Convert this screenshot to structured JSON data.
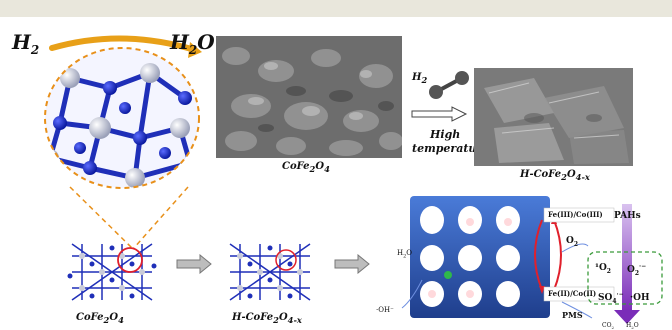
{
  "header": {
    "bar_color": "#e9e7dc"
  },
  "top_left": {
    "h2": "H",
    "h2_sub": "2",
    "h2o_h": "H",
    "h2o_sub": "2",
    "h2o_o": "O"
  },
  "sem_left": {
    "label_main": "CoFe",
    "label_sub1": "2",
    "label_o": "O",
    "label_sub2": "4"
  },
  "arrow_block": {
    "h2": "H",
    "h2_sub": "2",
    "line1": "High",
    "line2": "temperature"
  },
  "sem_right": {
    "label_main": "H-CoFe",
    "label_sub1": "2",
    "label_o": "O",
    "label_sub2": "4-x"
  },
  "bottom_left": {
    "label_main": "CoFe",
    "label_sub1": "2",
    "label_o": "O",
    "label_sub2": "4"
  },
  "bottom_mid": {
    "label_main": "H-CoFe",
    "label_sub1": "2",
    "label_o": "O",
    "label_sub2": "4-x"
  },
  "mechanism": {
    "fe3": "Fe(III)/Co(III)",
    "fe2": "Fe(II)/Co(II)",
    "pahs": "PAHs",
    "o2": "O",
    "o2_sub": "2",
    "singlet": "¹O",
    "singlet_sub": "2",
    "superoxide": "O",
    "superoxide_sub": "2",
    "superoxide_sup": "·−",
    "sulfate": "SO",
    "sulfate_sub": "4",
    "sulfate_sup": "·−",
    "hydroxyl": "·OH",
    "h2o": "H",
    "h2o_sub": "2",
    "h2o_o": "O",
    "oh": "·OH⁻",
    "pms": "PMS",
    "co2": "CO",
    "co2_sub": "2",
    "h2o_bottom": "H",
    "h2o_bottom_sub": "2",
    "h2o_bottom_o": "O"
  },
  "colors": {
    "framework": "#2c57b8",
    "atom": "#c9cbd8",
    "bond": "#1f2fb8",
    "accent_orange": "#e8901a",
    "accent_red": "#e0202c",
    "accent_purple": "#8a3ec2",
    "dashed_green": "#3a9a3a"
  }
}
